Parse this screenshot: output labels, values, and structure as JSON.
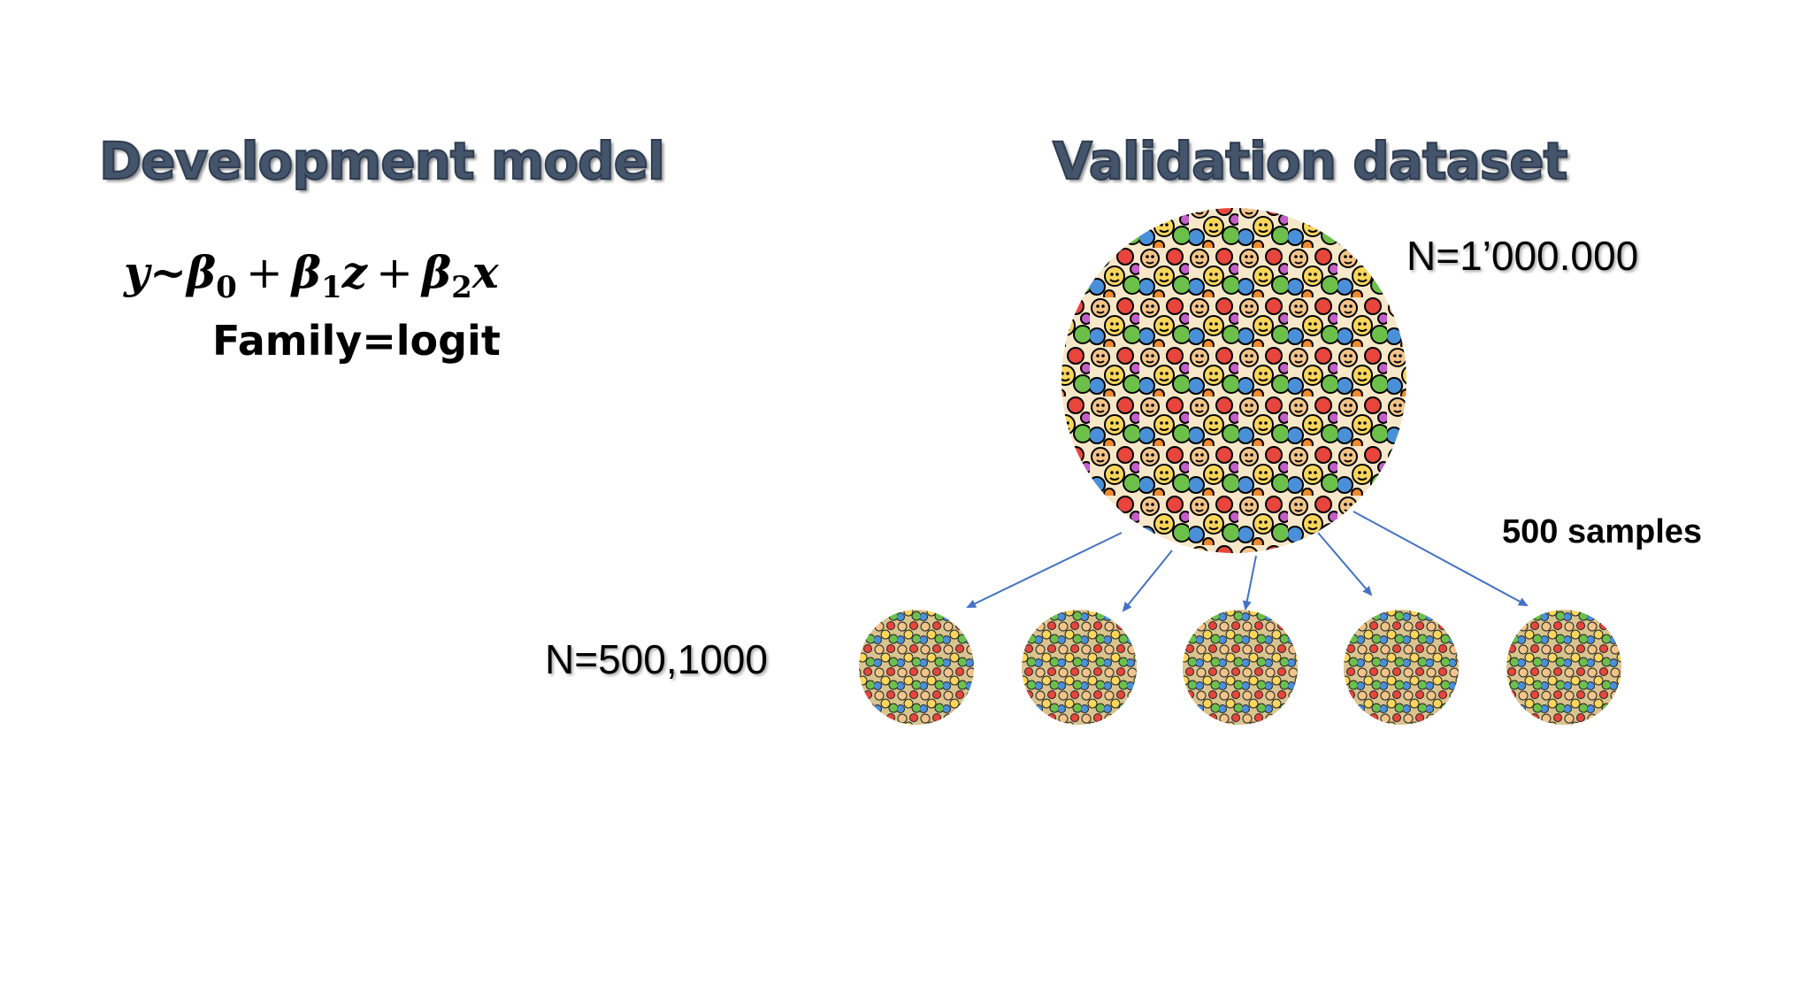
{
  "development": {
    "heading": "Development model",
    "formula": {
      "y": "y",
      "tilde": "~",
      "b0": "β",
      "b0_sub": "0",
      "plus1": "+",
      "b1": "β",
      "b1_sub": "1",
      "z": "z",
      "plus2": "+",
      "b2": "β",
      "b2_sub": "2",
      "x": "x"
    },
    "family": "Family=logit"
  },
  "validation": {
    "heading": "Validation dataset",
    "population_n": "N=1’000.000",
    "samples_label": "500 samples",
    "sample_n": "N=500,1000"
  },
  "colors": {
    "heading_fill": "#44546a",
    "arrow": "#4472c4"
  }
}
